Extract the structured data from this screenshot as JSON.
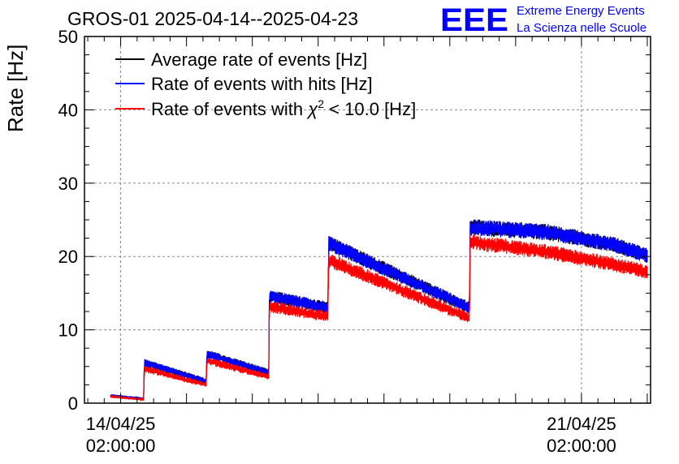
{
  "chart_data": {
    "type": "line",
    "title": "GROS-01 2025-04-14--2025-04-23",
    "ylabel": "Rate [Hz]",
    "xlabel": "",
    "ylim": [
      0,
      50
    ],
    "yticks": [
      0,
      10,
      20,
      30,
      40,
      50
    ],
    "xlim_days": [
      -0.55,
      8.05
    ],
    "xticks": [
      {
        "day": 0,
        "date": "14/04/25",
        "time": "02:00:00"
      },
      {
        "day": 7,
        "date": "21/04/25",
        "time": "02:00:00"
      }
    ],
    "grid": true,
    "legend_position": "top-left",
    "logo": {
      "mark": "EEE",
      "line1": "Extreme Energy Events",
      "line2": "La Scienza nelle Scuole",
      "color": "#0000ff"
    },
    "series": [
      {
        "name": "Average rate of events [Hz]",
        "color": "#000000",
        "points": [
          [
            -0.15,
            1.0
          ],
          [
            0.35,
            0.6
          ],
          [
            0.36,
            5.5
          ],
          [
            1.3,
            3.0
          ],
          [
            1.31,
            6.7
          ],
          [
            2.25,
            4.2
          ],
          [
            2.26,
            14.6
          ],
          [
            3.15,
            13.0
          ],
          [
            3.16,
            21.8
          ],
          [
            5.3,
            13.0
          ],
          [
            5.31,
            24.0
          ],
          [
            6.5,
            23.3
          ],
          [
            7.5,
            21.6
          ],
          [
            8.0,
            20.1
          ]
        ]
      },
      {
        "name": "Rate of events with hits [Hz]",
        "color": "#0000ff",
        "points": [
          [
            -0.15,
            1.0
          ],
          [
            0.35,
            0.6
          ],
          [
            0.36,
            5.5
          ],
          [
            1.3,
            3.0
          ],
          [
            1.31,
            6.7
          ],
          [
            2.25,
            4.2
          ],
          [
            2.26,
            14.6
          ],
          [
            3.15,
            13.0
          ],
          [
            3.16,
            21.8
          ],
          [
            5.3,
            13.0
          ],
          [
            5.31,
            24.0
          ],
          [
            6.5,
            23.3
          ],
          [
            7.5,
            21.6
          ],
          [
            8.0,
            20.1
          ]
        ]
      },
      {
        "name": "Rate of events with χ² < 10.0 [Hz]",
        "legend_label": "Rate of events with",
        "legend_chi": "χ",
        "legend_sup": "2",
        "legend_rest": "< 10.0 [Hz]",
        "color": "#ff0000",
        "points": [
          [
            -0.15,
            0.9
          ],
          [
            0.35,
            0.5
          ],
          [
            0.36,
            4.7
          ],
          [
            1.3,
            2.5
          ],
          [
            1.31,
            5.8
          ],
          [
            2.25,
            3.6
          ],
          [
            2.26,
            13.2
          ],
          [
            3.15,
            11.8
          ],
          [
            3.16,
            19.5
          ],
          [
            5.3,
            11.6
          ],
          [
            5.31,
            22.0
          ],
          [
            6.5,
            20.6
          ],
          [
            7.5,
            18.9
          ],
          [
            8.0,
            17.9
          ]
        ]
      }
    ]
  }
}
